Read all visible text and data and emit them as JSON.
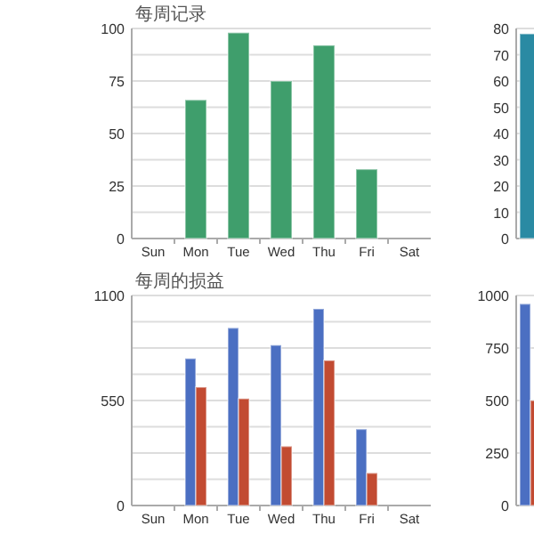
{
  "chart_data": [
    {
      "type": "bar",
      "title": "每周记录",
      "categories": [
        "Sun",
        "Mon",
        "Tue",
        "Wed",
        "Thu",
        "Fri",
        "Sat"
      ],
      "values": [
        null,
        66,
        98,
        75,
        92,
        33,
        null
      ],
      "color": "#3f9e6c",
      "ylim": [
        0,
        100
      ],
      "yticks": [
        0,
        {
          "value": 12.5,
          "label": null
        },
        25,
        {
          "value": 37.5,
          "label": null
        },
        50,
        {
          "value": 62.5,
          "label": null
        },
        75,
        {
          "value": 87.5,
          "label": null
        },
        100
      ],
      "grid": "y"
    },
    {
      "type": "bar",
      "categories": [
        null
      ],
      "values": [
        78
      ],
      "color": "#2a8aa3",
      "ylim": [
        0,
        80
      ],
      "yticks": [
        0,
        10,
        20,
        30,
        40,
        50,
        60,
        70,
        80
      ],
      "grid": "y"
    },
    {
      "type": "bar",
      "title": "每周的损益",
      "categories": [
        "Sun",
        "Mon",
        "Tue",
        "Wed",
        "Thu",
        "Fri",
        "Sat"
      ],
      "series": [
        {
          "color": "#4b6fc2",
          "values": [
            null,
            770,
            930,
            840,
            1030,
            400,
            null
          ]
        },
        {
          "color": "#c24b32",
          "values": [
            null,
            620,
            560,
            310,
            760,
            170,
            null
          ]
        }
      ],
      "ylim": [
        0,
        1100
      ],
      "yticks": [
        0,
        {
          "value": 137.5,
          "label": null
        },
        {
          "value": 275,
          "label": null
        },
        {
          "value": 412.5,
          "label": null
        },
        550,
        {
          "value": 687.5,
          "label": null
        },
        {
          "value": 825,
          "label": null
        },
        {
          "value": 962.5,
          "label": null
        },
        1100
      ],
      "grid": "y"
    },
    {
      "type": "bar",
      "categories": [
        null
      ],
      "series": [
        {
          "color": "#4b6fc2",
          "values": [
            960
          ]
        },
        {
          "color": "#c24b32",
          "values": [
            500
          ]
        }
      ],
      "ylim": [
        0,
        1000
      ],
      "yticks": [
        0,
        250,
        500,
        750,
        1000
      ],
      "grid": "y"
    }
  ]
}
